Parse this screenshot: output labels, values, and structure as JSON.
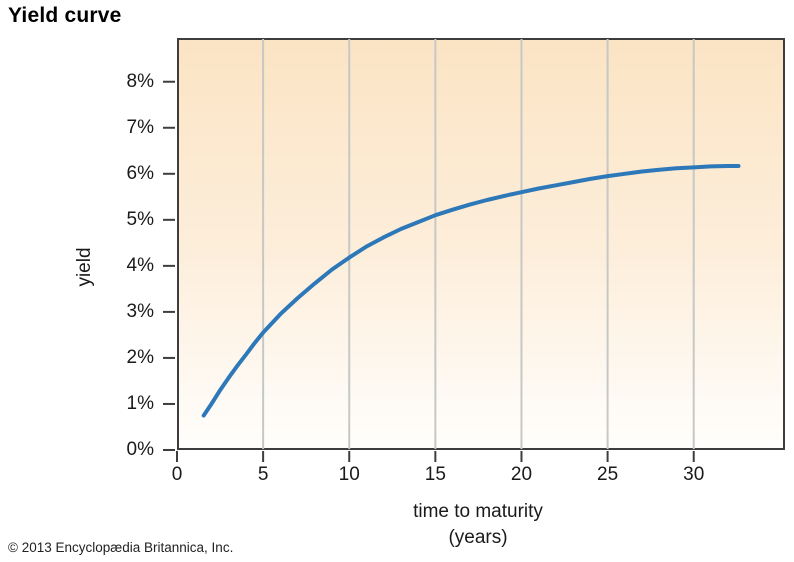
{
  "page": {
    "copyright": "© 2013 Encyclopædia Britannica, Inc."
  },
  "colors": {
    "curve": "#2d78b8",
    "gridline": "#c6c8c5",
    "axis": "#3d3d3d",
    "text": "#1a1a1a",
    "plot_bg_top": "#fbe4c4",
    "plot_bg_mid": "#fdeedb",
    "plot_bg_bottom": "#fffefc"
  },
  "chart_data": {
    "type": "line",
    "title": "Yield curve",
    "xlabel_line1": "time to maturity",
    "xlabel_line2": "(years)",
    "ylabel": "yield",
    "xlim": [
      0,
      35.3
    ],
    "ylim": [
      0,
      8.95
    ],
    "x_ticks": [
      0,
      5,
      10,
      15,
      20,
      25,
      30
    ],
    "x_tick_labels": [
      "0",
      "5",
      "10",
      "15",
      "20",
      "25",
      "30"
    ],
    "y_ticks": [
      0,
      1,
      2,
      3,
      4,
      5,
      6,
      7,
      8
    ],
    "y_tick_labels": [
      "0%",
      "1%",
      "2%",
      "3%",
      "4%",
      "5%",
      "6%",
      "7%",
      "8%"
    ],
    "grid": "vertical-gridlines-at-x-ticks",
    "legend": "none",
    "series": [
      {
        "name": "yield curve",
        "points": [
          [
            1.55,
            0.75
          ],
          [
            2,
            1.0
          ],
          [
            2.5,
            1.3
          ],
          [
            3,
            1.57
          ],
          [
            3.5,
            1.83
          ],
          [
            4,
            2.07
          ],
          [
            4.5,
            2.32
          ],
          [
            5,
            2.55
          ],
          [
            6,
            2.95
          ],
          [
            7,
            3.3
          ],
          [
            8,
            3.62
          ],
          [
            9,
            3.92
          ],
          [
            10,
            4.18
          ],
          [
            11,
            4.42
          ],
          [
            12,
            4.62
          ],
          [
            13,
            4.8
          ],
          [
            14,
            4.95
          ],
          [
            15,
            5.1
          ],
          [
            16,
            5.22
          ],
          [
            17,
            5.33
          ],
          [
            18,
            5.43
          ],
          [
            19,
            5.52
          ],
          [
            20,
            5.6
          ],
          [
            21,
            5.68
          ],
          [
            22,
            5.75
          ],
          [
            23,
            5.82
          ],
          [
            24,
            5.89
          ],
          [
            25,
            5.95
          ],
          [
            26,
            6.0
          ],
          [
            27,
            6.05
          ],
          [
            28,
            6.09
          ],
          [
            29,
            6.12
          ],
          [
            30,
            6.14
          ],
          [
            31,
            6.16
          ],
          [
            32,
            6.17
          ],
          [
            32.6,
            6.17
          ]
        ]
      }
    ]
  }
}
